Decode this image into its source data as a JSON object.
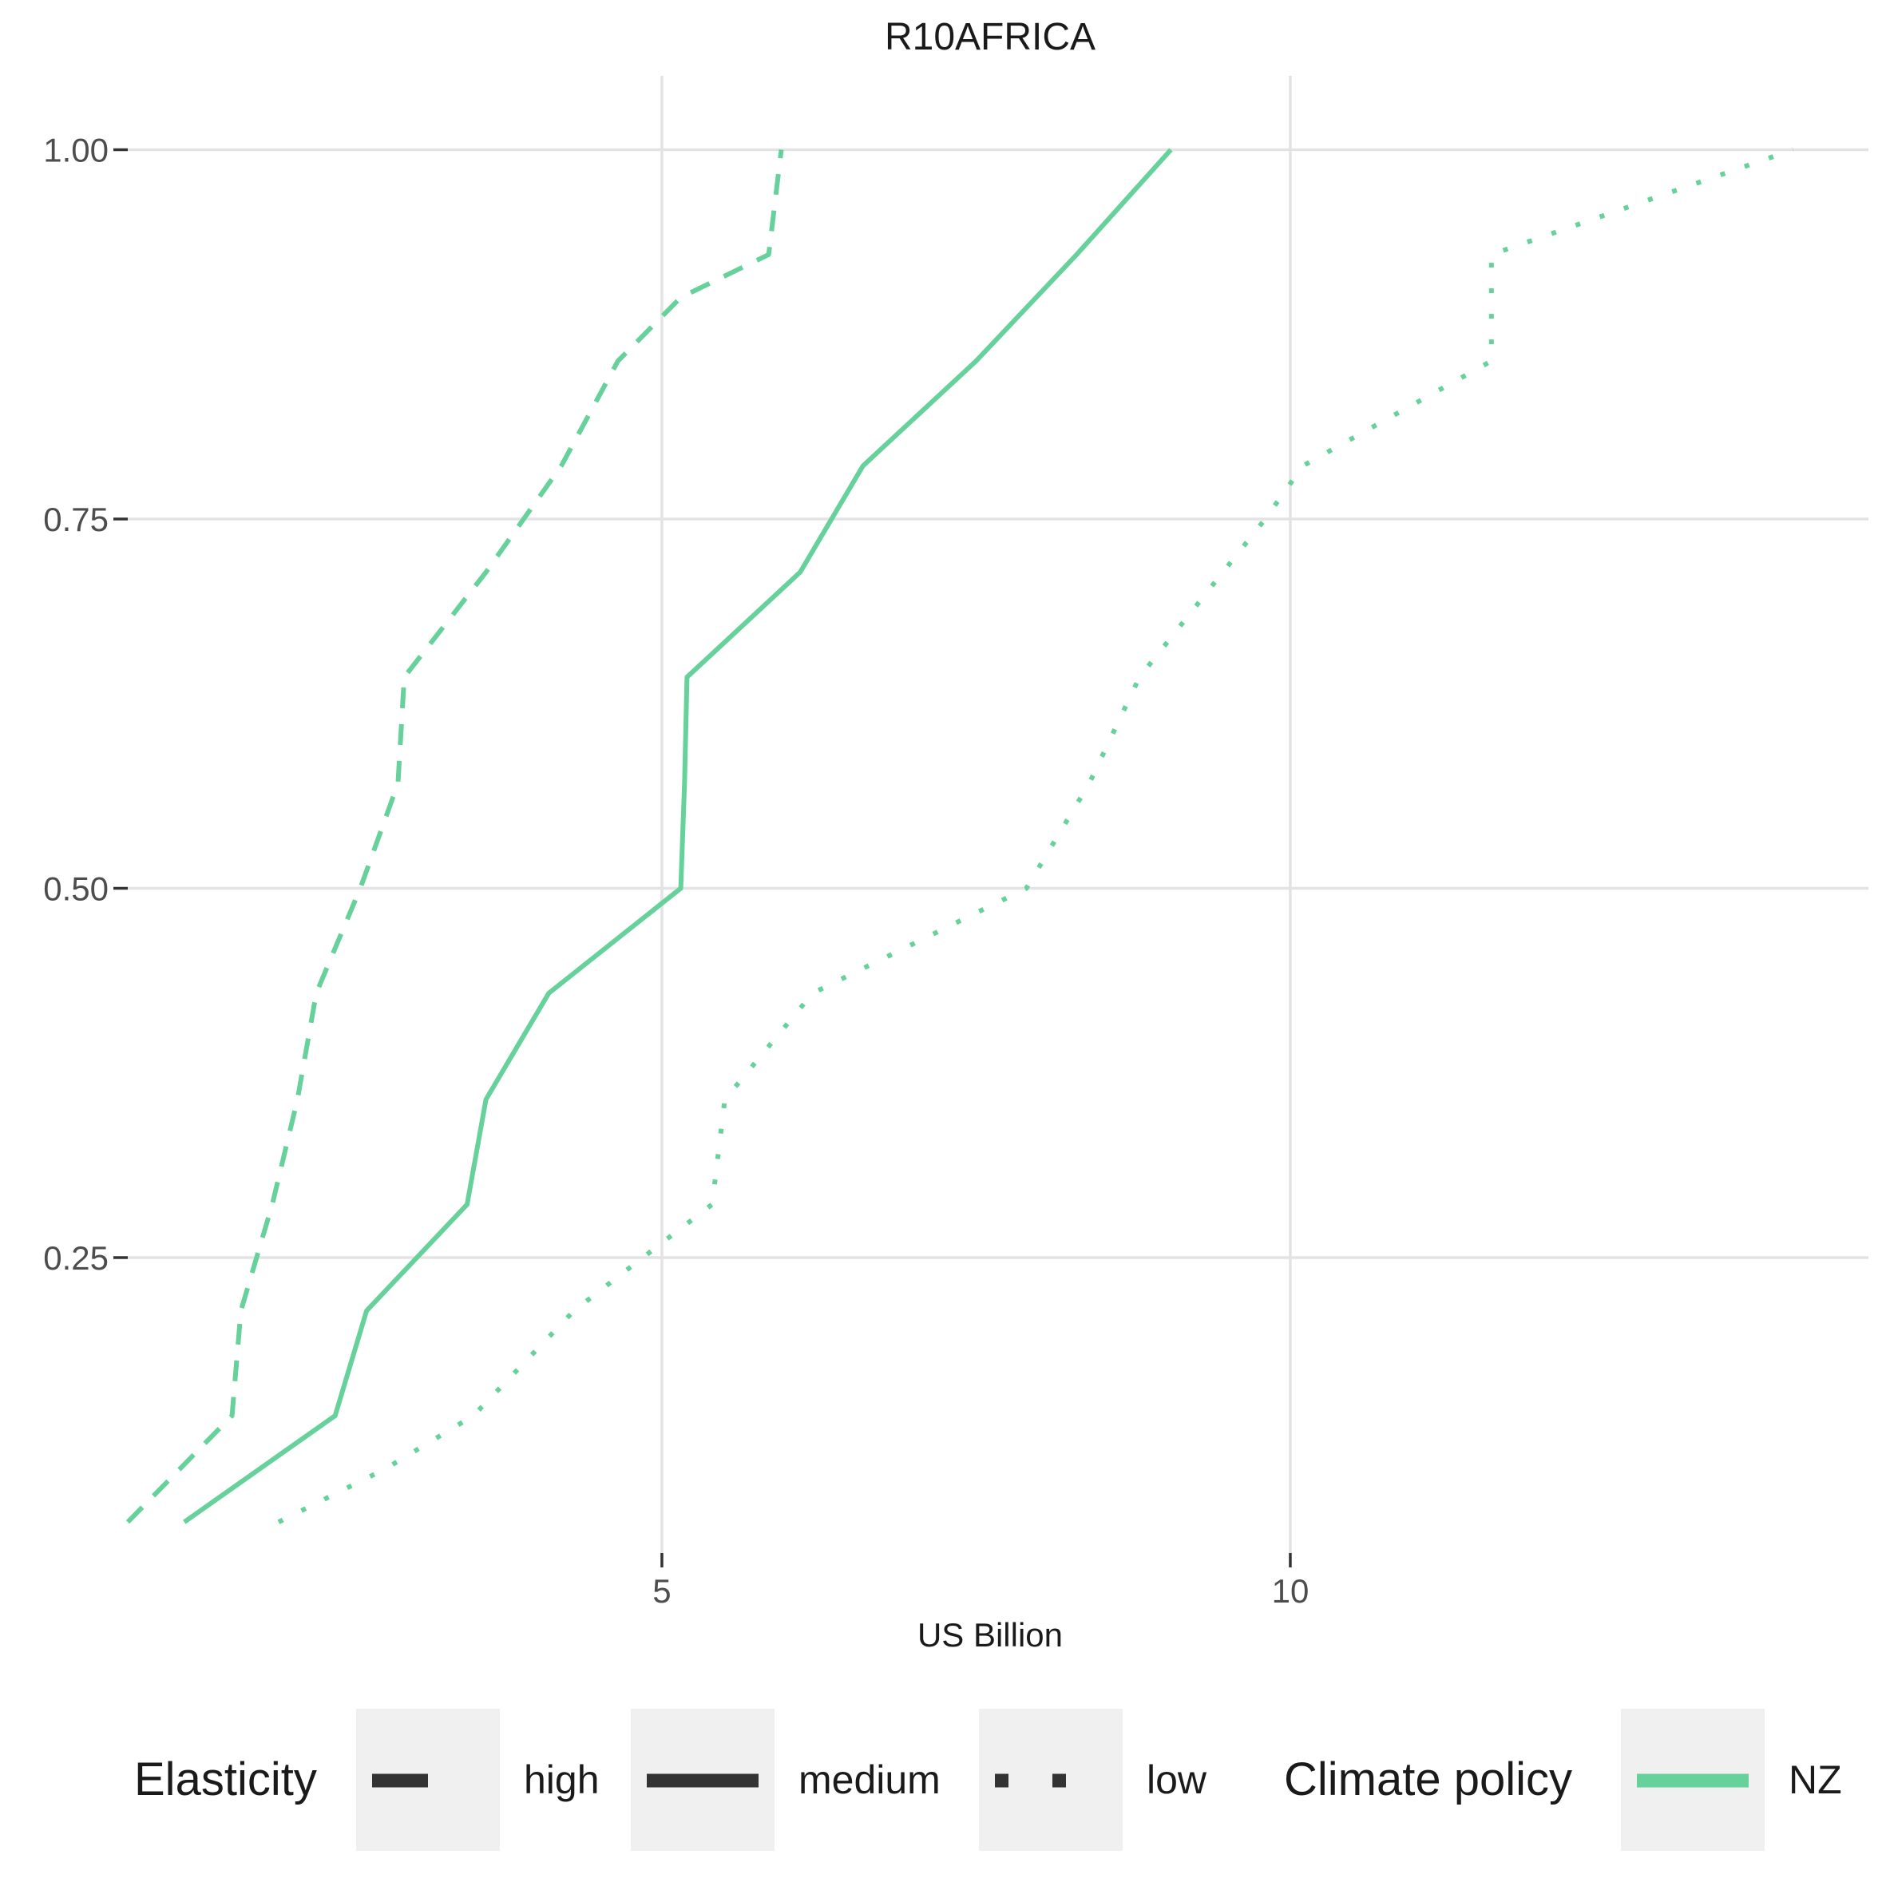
{
  "chart_data": {
    "type": "line",
    "title": "R10AFRICA",
    "xlabel": "US Billion",
    "ylabel": "",
    "xlim": [
      0.75,
      14.6
    ],
    "ylim": [
      0.05,
      1.05
    ],
    "x_ticks": [
      5,
      10
    ],
    "x_tick_labels": [
      "5",
      "10"
    ],
    "y_ticks": [
      0.25,
      0.5,
      0.75,
      1.0
    ],
    "y_tick_labels": [
      "0.25",
      "0.50",
      "0.75",
      "1.00"
    ],
    "grid": true,
    "legend_position": "bottom",
    "colors": {
      "NZ": "#66d19a",
      "key": "#333333",
      "grid": "#e3e3e3",
      "key_background": "#f0f0f0"
    },
    "legend": {
      "elasticity_title": "Elasticity",
      "elasticity_items": [
        {
          "label": "high",
          "dash": "dashed"
        },
        {
          "label": "medium",
          "dash": "solid"
        },
        {
          "label": "low",
          "dash": "dotted"
        }
      ],
      "policy_title": "Climate policy",
      "policy_items": [
        {
          "label": "NZ"
        }
      ]
    },
    "series": [
      {
        "elasticity": "high",
        "policy": "NZ",
        "dash": "dashed",
        "points": [
          [
            0.75,
            0.071
          ],
          [
            1.58,
            0.143
          ],
          [
            1.65,
            0.214
          ],
          [
            1.9,
            0.286
          ],
          [
            2.1,
            0.357
          ],
          [
            2.25,
            0.429
          ],
          [
            2.6,
            0.5
          ],
          [
            2.9,
            0.571
          ],
          [
            2.95,
            0.643
          ],
          [
            3.6,
            0.714
          ],
          [
            4.2,
            0.786
          ],
          [
            4.65,
            0.857
          ],
          [
            5.15,
            0.9
          ],
          [
            5.85,
            0.929
          ],
          [
            5.95,
            1.0
          ]
        ]
      },
      {
        "elasticity": "medium",
        "policy": "NZ",
        "dash": "solid",
        "points": [
          [
            1.2,
            0.071
          ],
          [
            2.4,
            0.143
          ],
          [
            2.65,
            0.214
          ],
          [
            3.45,
            0.286
          ],
          [
            3.6,
            0.357
          ],
          [
            4.1,
            0.429
          ],
          [
            5.15,
            0.5
          ],
          [
            5.18,
            0.571
          ],
          [
            5.2,
            0.643
          ],
          [
            6.1,
            0.714
          ],
          [
            6.6,
            0.786
          ],
          [
            7.5,
            0.857
          ],
          [
            8.3,
            0.929
          ],
          [
            9.05,
            1.0
          ]
        ]
      },
      {
        "elasticity": "low",
        "policy": "NZ",
        "dash": "dotted",
        "points": [
          [
            1.95,
            0.071
          ],
          [
            2.8,
            0.107
          ],
          [
            3.5,
            0.143
          ],
          [
            4.3,
            0.214
          ],
          [
            5.0,
            0.26
          ],
          [
            5.4,
            0.286
          ],
          [
            5.5,
            0.357
          ],
          [
            6.2,
            0.429
          ],
          [
            7.9,
            0.5
          ],
          [
            8.4,
            0.571
          ],
          [
            8.8,
            0.643
          ],
          [
            9.8,
            0.75
          ],
          [
            10.1,
            0.786
          ],
          [
            11.6,
            0.857
          ],
          [
            11.6,
            0.929
          ],
          [
            14.0,
            1.0
          ]
        ]
      }
    ]
  }
}
